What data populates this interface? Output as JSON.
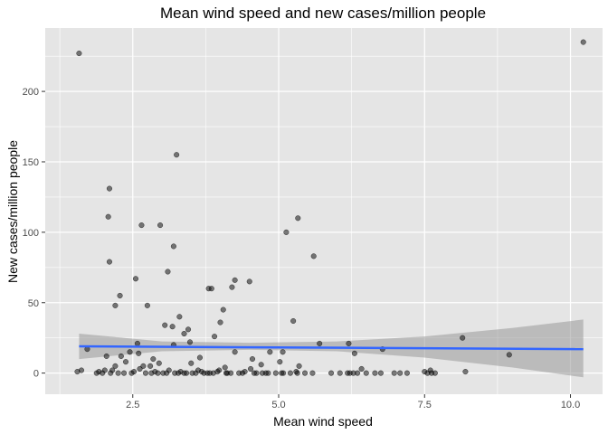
{
  "chart_data": {
    "type": "scatter",
    "title": "Mean wind speed and new cases/million people",
    "xlabel": "Mean wind speed",
    "ylabel": "New cases/million people",
    "xlim": [
      1.0,
      10.55
    ],
    "ylim": [
      -15,
      245
    ],
    "x_ticks": [
      2.5,
      5.0,
      7.5,
      10.0
    ],
    "x_tick_labels": [
      "2.5",
      "5.0",
      "7.5",
      "10.0"
    ],
    "y_ticks": [
      0,
      50,
      100,
      150,
      200
    ],
    "y_tick_labels": [
      "0",
      "50",
      "100",
      "150",
      "200"
    ],
    "x_minor_ticks": [
      1.25,
      3.75,
      6.25,
      8.75
    ],
    "y_minor_ticks": [
      25,
      75,
      125,
      175,
      225
    ],
    "grid": true,
    "panel_background": "#e5e5e5",
    "grid_color": "#ffffff",
    "point_color": "#000000",
    "point_opacity": 0.5,
    "fit_line_color": "#3366ff",
    "confidence_band_color": "#999999",
    "points": [
      [
        1.58,
        227
      ],
      [
        10.22,
        235
      ],
      [
        3.25,
        155
      ],
      [
        2.1,
        131
      ],
      [
        2.08,
        111
      ],
      [
        2.65,
        105
      ],
      [
        2.97,
        105
      ],
      [
        5.33,
        110
      ],
      [
        5.13,
        100
      ],
      [
        3.2,
        90
      ],
      [
        5.6,
        83
      ],
      [
        2.1,
        79
      ],
      [
        3.1,
        72
      ],
      [
        2.55,
        67
      ],
      [
        4.25,
        66
      ],
      [
        4.5,
        65
      ],
      [
        3.85,
        60
      ],
      [
        3.8,
        60
      ],
      [
        4.2,
        61
      ],
      [
        2.28,
        55
      ],
      [
        2.2,
        48
      ],
      [
        2.75,
        48
      ],
      [
        4.05,
        45
      ],
      [
        3.3,
        40
      ],
      [
        4.0,
        36
      ],
      [
        3.05,
        34
      ],
      [
        3.18,
        33
      ],
      [
        3.45,
        31
      ],
      [
        3.38,
        28
      ],
      [
        5.25,
        37
      ],
      [
        3.9,
        26
      ],
      [
        8.15,
        25
      ],
      [
        2.58,
        21
      ],
      [
        3.2,
        20
      ],
      [
        3.48,
        22
      ],
      [
        4.25,
        15
      ],
      [
        4.85,
        15
      ],
      [
        5.7,
        21
      ],
      [
        6.2,
        21
      ],
      [
        6.3,
        14
      ],
      [
        8.95,
        13
      ],
      [
        5.07,
        15
      ],
      [
        6.78,
        17
      ],
      [
        1.72,
        17
      ],
      [
        2.45,
        15
      ],
      [
        2.6,
        14
      ],
      [
        2.3,
        12
      ],
      [
        2.05,
        12
      ],
      [
        2.85,
        10
      ],
      [
        2.38,
        8
      ],
      [
        2.95,
        7
      ],
      [
        4.55,
        10
      ],
      [
        5.02,
        8
      ],
      [
        3.65,
        11
      ],
      [
        4.7,
        6
      ],
      [
        2.8,
        5
      ],
      [
        3.5,
        7
      ],
      [
        4.08,
        4
      ],
      [
        1.62,
        2
      ],
      [
        1.55,
        1
      ],
      [
        1.92,
        1
      ],
      [
        2.02,
        2
      ],
      [
        2.12,
        0
      ],
      [
        2.2,
        5
      ],
      [
        2.35,
        0
      ],
      [
        2.48,
        0
      ],
      [
        2.62,
        3
      ],
      [
        2.72,
        0
      ],
      [
        2.88,
        1
      ],
      [
        2.93,
        0
      ],
      [
        3.02,
        0
      ],
      [
        3.12,
        2
      ],
      [
        3.22,
        0
      ],
      [
        3.32,
        1
      ],
      [
        3.42,
        0
      ],
      [
        3.52,
        0
      ],
      [
        3.62,
        2
      ],
      [
        3.72,
        0
      ],
      [
        3.82,
        0
      ],
      [
        3.95,
        1
      ],
      [
        4.1,
        0
      ],
      [
        4.18,
        0
      ],
      [
        4.32,
        0
      ],
      [
        4.42,
        1
      ],
      [
        4.52,
        3
      ],
      [
        4.62,
        0
      ],
      [
        4.78,
        0
      ],
      [
        4.82,
        0
      ],
      [
        5.05,
        0
      ],
      [
        5.2,
        0
      ],
      [
        5.35,
        5
      ],
      [
        5.3,
        1
      ],
      [
        5.45,
        0
      ],
      [
        5.58,
        0
      ],
      [
        5.9,
        0
      ],
      [
        6.05,
        0
      ],
      [
        6.18,
        0
      ],
      [
        6.22,
        0
      ],
      [
        6.35,
        0
      ],
      [
        6.42,
        3
      ],
      [
        6.5,
        0
      ],
      [
        6.65,
        0
      ],
      [
        6.75,
        0
      ],
      [
        6.98,
        0
      ],
      [
        7.08,
        0
      ],
      [
        7.2,
        0
      ],
      [
        7.55,
        0
      ],
      [
        7.6,
        2
      ],
      [
        7.62,
        0
      ],
      [
        7.68,
        0
      ],
      [
        8.2,
        1
      ],
      [
        1.88,
        0
      ],
      [
        1.98,
        0
      ],
      [
        2.15,
        2
      ],
      [
        2.25,
        0
      ],
      [
        2.52,
        1
      ],
      [
        2.68,
        5
      ],
      [
        2.82,
        0
      ],
      [
        3.08,
        0
      ],
      [
        3.28,
        0
      ],
      [
        3.38,
        0
      ],
      [
        3.58,
        0
      ],
      [
        3.68,
        1
      ],
      [
        3.78,
        0
      ],
      [
        3.88,
        0
      ],
      [
        3.98,
        2
      ],
      [
        4.12,
        0
      ],
      [
        4.38,
        0
      ],
      [
        4.58,
        0
      ],
      [
        4.72,
        0
      ],
      [
        4.95,
        0
      ],
      [
        5.08,
        0
      ],
      [
        5.32,
        0
      ],
      [
        6.28,
        0
      ],
      [
        7.5,
        1
      ]
    ],
    "fit_line": {
      "x": [
        1.58,
        10.22
      ],
      "y": [
        19,
        17
      ]
    },
    "confidence_band": {
      "x": [
        1.58,
        3.0,
        4.5,
        6.0,
        7.5,
        9.0,
        10.22
      ],
      "upper": [
        28,
        22.5,
        21.5,
        22.5,
        26,
        32,
        38
      ],
      "lower": [
        10,
        15.5,
        16.5,
        15.5,
        11,
        4,
        -3
      ]
    }
  }
}
